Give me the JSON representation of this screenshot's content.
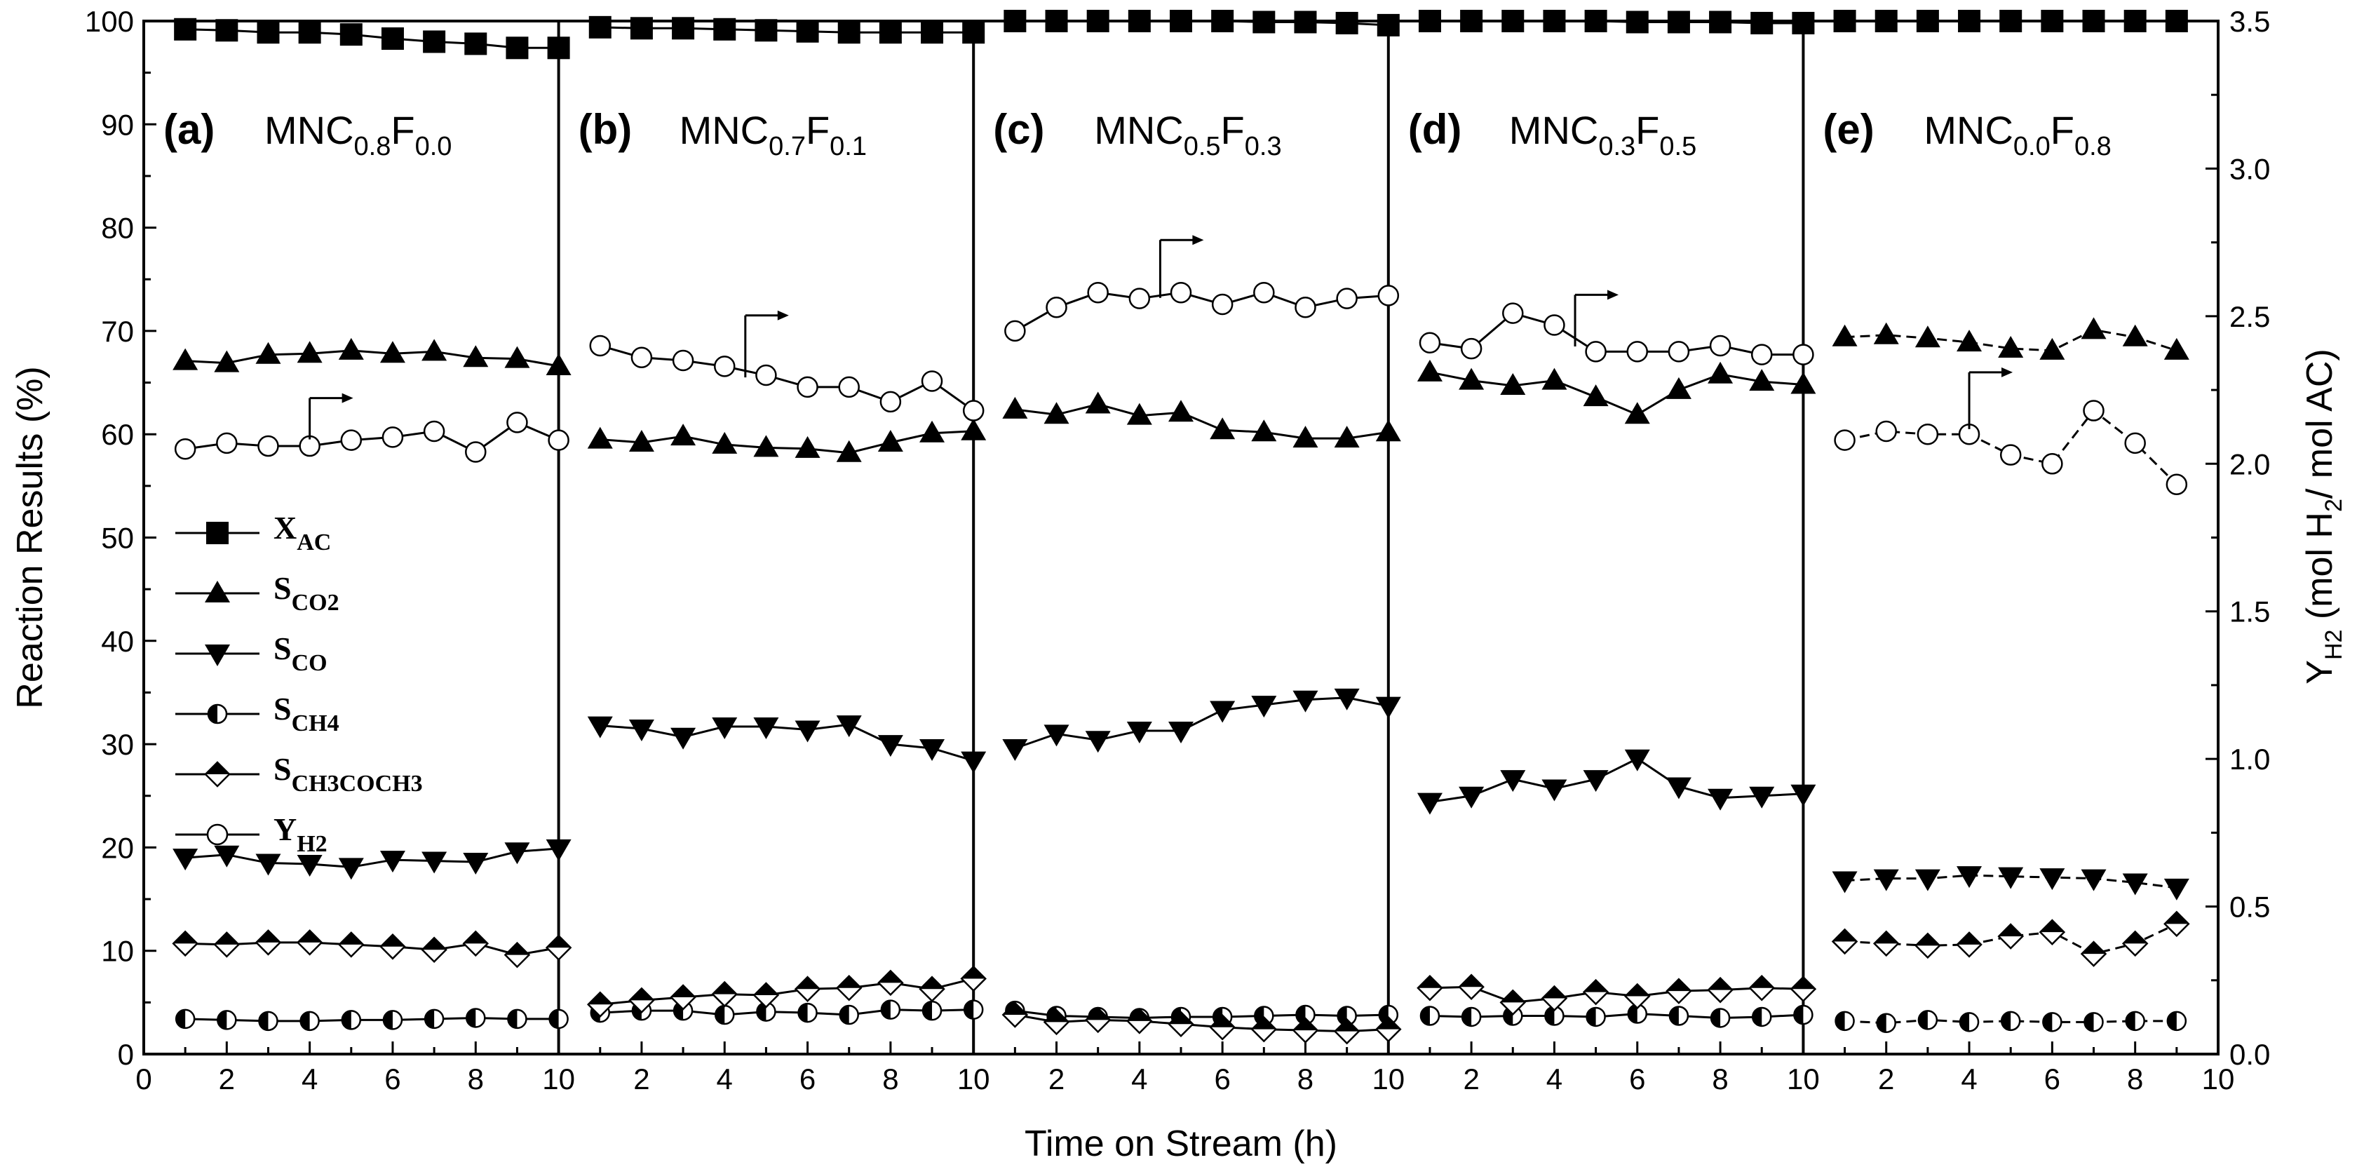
{
  "chart_data": {
    "type": "line",
    "xlabel": "Time on Stream (h)",
    "ylabel_left": "Reaction Results (%)",
    "ylabel_right": {
      "main": "Y",
      "sub": "H2",
      "rest1": " (mol H",
      "sub2": "2",
      "rest2": "/ mol AC)"
    },
    "ylim_left": [
      0,
      100
    ],
    "ylim_right": [
      0,
      3.5
    ],
    "left_ticks": [
      "0",
      "10",
      "20",
      "30",
      "40",
      "50",
      "60",
      "70",
      "80",
      "90",
      "100"
    ],
    "right_ticks": [
      "0.0",
      "0.5",
      "1.0",
      "1.5",
      "2.0",
      "2.5",
      "3.0",
      "3.5"
    ],
    "xlim": [
      0,
      10
    ],
    "x_ticks_panel": [
      "0",
      "2",
      "4",
      "6",
      "8",
      "10"
    ],
    "x_ticks_first": [
      "0",
      "2",
      "4",
      "6",
      "8",
      "10"
    ],
    "x_ticks_middle": [
      "2",
      "4",
      "6",
      "8",
      "10"
    ],
    "x_ticks_last": [
      "2",
      "4",
      "6",
      "8",
      "10"
    ],
    "legend": [
      {
        "key": "XAC",
        "main": "X",
        "sub": "AC",
        "marker": "square"
      },
      {
        "key": "SCO2",
        "main": "S",
        "sub": "CO2",
        "marker": "triangle-up"
      },
      {
        "key": "SCO",
        "main": "S",
        "sub": "CO",
        "marker": "triangle-down"
      },
      {
        "key": "SCH4",
        "main": "S",
        "sub": "CH4",
        "marker": "half-circle"
      },
      {
        "key": "SCH3COCH3",
        "main": "S",
        "sub": "CH3COCH3",
        "marker": "half-diamond"
      },
      {
        "key": "YH2",
        "main": "Y",
        "sub": "H2",
        "marker": "open-circle"
      }
    ],
    "panels": [
      {
        "label": "(a)",
        "title_main": "MNC",
        "sub1": "0.8",
        "title_f": "F",
        "sub2": "0.0",
        "x": [
          1,
          2,
          3,
          4,
          5,
          6,
          7,
          8,
          9,
          10
        ],
        "series": {
          "XAC": [
            99.2,
            99.1,
            98.9,
            98.9,
            98.7,
            98.3,
            98.0,
            97.8,
            97.4,
            97.4
          ],
          "SCO2": [
            67.1,
            66.9,
            67.7,
            67.8,
            68.1,
            67.8,
            68.0,
            67.4,
            67.3,
            66.6
          ],
          "SCO": [
            19.0,
            19.3,
            18.5,
            18.4,
            18.1,
            18.8,
            18.7,
            18.6,
            19.6,
            19.9
          ],
          "SCH4": [
            3.4,
            3.3,
            3.2,
            3.2,
            3.3,
            3.3,
            3.4,
            3.5,
            3.4,
            3.4
          ],
          "SCH3COCH3": [
            10.7,
            10.6,
            10.8,
            10.8,
            10.6,
            10.4,
            10.1,
            10.7,
            9.6,
            10.3
          ],
          "YH2": [
            2.05,
            2.07,
            2.06,
            2.06,
            2.08,
            2.09,
            2.11,
            2.04,
            2.14,
            2.08
          ]
        }
      },
      {
        "label": "(b)",
        "title_main": "MNC",
        "sub1": "0.7",
        "title_f": "F",
        "sub2": "0.1",
        "x": [
          1,
          2,
          3,
          4,
          5,
          6,
          7,
          8,
          9,
          10
        ],
        "series": {
          "XAC": [
            99.4,
            99.3,
            99.3,
            99.2,
            99.1,
            99.0,
            98.9,
            98.9,
            98.9,
            98.9
          ],
          "SCO2": [
            59.5,
            59.2,
            59.8,
            59.0,
            58.7,
            58.6,
            58.2,
            59.2,
            60.1,
            60.3
          ],
          "SCO": [
            31.8,
            31.5,
            30.7,
            31.7,
            31.7,
            31.4,
            31.9,
            30.0,
            29.6,
            28.4
          ],
          "SCH4": [
            4.0,
            4.2,
            4.2,
            3.8,
            4.1,
            4.0,
            3.8,
            4.3,
            4.2,
            4.3
          ],
          "SCH3COCH3": [
            4.8,
            5.2,
            5.5,
            5.8,
            5.7,
            6.3,
            6.4,
            6.9,
            6.3,
            7.3
          ],
          "YH2": [
            2.4,
            2.36,
            2.35,
            2.33,
            2.3,
            2.26,
            2.26,
            2.21,
            2.28,
            2.18
          ]
        }
      },
      {
        "label": "(c)",
        "title_main": "MNC",
        "sub1": "0.5",
        "title_f": "F",
        "sub2": "0.3",
        "x": [
          1,
          2,
          3,
          4,
          5,
          6,
          7,
          8,
          9,
          10
        ],
        "series": {
          "XAC": [
            100.0,
            100.0,
            100.0,
            100.0,
            100.0,
            100.0,
            99.9,
            99.9,
            99.8,
            99.6
          ],
          "SCO2": [
            62.4,
            61.9,
            62.9,
            61.8,
            62.1,
            60.4,
            60.2,
            59.6,
            59.6,
            60.2
          ],
          "SCO": [
            29.6,
            31.0,
            30.4,
            31.3,
            31.3,
            33.3,
            33.8,
            34.3,
            34.5,
            33.7
          ],
          "SCH4": [
            4.2,
            3.7,
            3.6,
            3.5,
            3.6,
            3.6,
            3.7,
            3.8,
            3.7,
            3.8
          ],
          "SCH3COCH3": [
            3.8,
            3.1,
            3.3,
            3.2,
            2.9,
            2.6,
            2.4,
            2.3,
            2.2,
            2.4
          ],
          "YH2": [
            2.45,
            2.53,
            2.58,
            2.56,
            2.58,
            2.54,
            2.58,
            2.53,
            2.56,
            2.57
          ]
        }
      },
      {
        "label": "(d)",
        "title_main": "MNC",
        "sub1": "0.3",
        "title_f": "F",
        "sub2": "0.5",
        "x": [
          1,
          2,
          3,
          4,
          5,
          6,
          7,
          8,
          9,
          10
        ],
        "series": {
          "XAC": [
            100.0,
            100.0,
            100.0,
            100.0,
            100.0,
            99.9,
            99.9,
            99.9,
            99.8,
            99.8
          ],
          "SCO2": [
            66.0,
            65.2,
            64.7,
            65.2,
            63.6,
            61.9,
            64.3,
            65.8,
            65.1,
            64.8
          ],
          "SCO": [
            24.4,
            25.0,
            26.6,
            25.7,
            26.6,
            28.6,
            25.9,
            24.8,
            25.0,
            25.2
          ],
          "SCH4": [
            3.7,
            3.6,
            3.7,
            3.7,
            3.6,
            3.9,
            3.7,
            3.5,
            3.6,
            3.8
          ],
          "SCH3COCH3": [
            6.4,
            6.5,
            5.0,
            5.4,
            6.0,
            5.6,
            6.1,
            6.2,
            6.4,
            6.3
          ],
          "YH2": [
            2.41,
            2.39,
            2.51,
            2.47,
            2.38,
            2.38,
            2.38,
            2.4,
            2.37,
            2.37
          ]
        }
      },
      {
        "label": "(e)",
        "title_main": "MNC",
        "sub1": "0.0",
        "title_f": "F",
        "sub2": "0.8",
        "x": [
          1,
          2,
          3,
          4,
          5,
          6,
          7,
          8,
          9
        ],
        "series": {
          "XAC": [
            100.0,
            100.0,
            100.0,
            100.0,
            100.0,
            100.0,
            100.0,
            100.0,
            100.0
          ],
          "SCO2": [
            69.4,
            69.6,
            69.3,
            68.9,
            68.3,
            68.1,
            70.1,
            69.4,
            68.1
          ],
          "SCO": [
            16.8,
            17.0,
            17.0,
            17.3,
            17.2,
            17.1,
            17.0,
            16.6,
            16.1
          ],
          "SCH4": [
            3.2,
            3.0,
            3.3,
            3.1,
            3.2,
            3.1,
            3.1,
            3.2,
            3.2
          ],
          "SCH3COCH3": [
            10.9,
            10.7,
            10.5,
            10.6,
            11.4,
            11.8,
            9.7,
            10.7,
            12.6
          ],
          "YH2": [
            2.08,
            2.11,
            2.1,
            2.1,
            2.03,
            2.0,
            2.18,
            2.07,
            1.93
          ]
        }
      }
    ],
    "annotations": "Arrows pointing right indicate Y_H2 series is plotted against the right axis"
  }
}
